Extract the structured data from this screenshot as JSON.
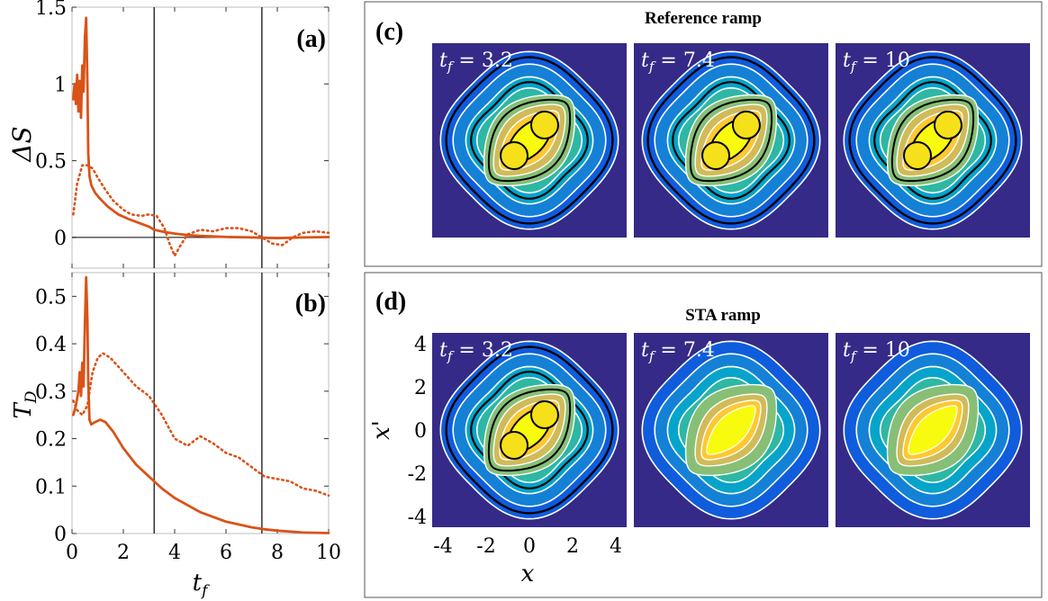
{
  "chart_data": [
    {
      "panel": "(a)",
      "type": "line",
      "xlabel": "",
      "ylabel": "ΔS",
      "xlim": [
        0,
        10
      ],
      "ylim": [
        -0.2,
        1.5
      ],
      "xticks": [
        0,
        2,
        4,
        6,
        8,
        10
      ],
      "yticks": [
        0,
        0.5,
        1,
        1.5
      ],
      "ytick_labels": [
        "0",
        "0.5",
        "1",
        "1.5"
      ],
      "zero_line": true,
      "vlines": [
        3.2,
        7.4
      ],
      "series": [
        {
          "style": "solid",
          "color": "#D95319",
          "x": [
            0.05,
            0.1,
            0.15,
            0.2,
            0.25,
            0.3,
            0.35,
            0.4,
            0.45,
            0.5,
            0.55,
            0.6,
            0.63,
            0.68,
            0.75,
            0.9,
            1.1,
            1.4,
            1.8,
            2.2,
            2.6,
            3.0,
            3.2,
            3.6,
            4.0,
            4.5,
            5.0,
            6.0,
            7.0,
            8.0,
            9.0,
            10.0
          ],
          "y": [
            0.9,
            1.0,
            0.87,
            1.06,
            0.82,
            1.02,
            0.78,
            1.12,
            0.95,
            1.3,
            1.43,
            1.0,
            0.55,
            0.4,
            0.34,
            0.29,
            0.25,
            0.2,
            0.15,
            0.12,
            0.095,
            0.07,
            0.05,
            0.035,
            0.025,
            0.015,
            0.01,
            0.003,
            0.0,
            -0.005,
            0.0,
            0.002
          ]
        },
        {
          "style": "dotted",
          "color": "#D95319",
          "x": [
            0.05,
            0.2,
            0.4,
            0.6,
            0.8,
            1.0,
            1.3,
            1.6,
            2.0,
            2.3,
            2.7,
            3.0,
            3.3,
            3.6,
            3.8,
            4.0,
            4.2,
            4.5,
            5.0,
            5.5,
            6.0,
            6.5,
            7.0,
            7.4,
            7.8,
            8.2,
            8.6,
            9.0,
            9.5,
            10.0
          ],
          "y": [
            0.15,
            0.35,
            0.47,
            0.47,
            0.45,
            0.39,
            0.31,
            0.24,
            0.18,
            0.15,
            0.14,
            0.15,
            0.14,
            0.06,
            -0.04,
            -0.12,
            -0.06,
            0.02,
            0.05,
            0.04,
            0.06,
            0.06,
            0.04,
            0.0,
            -0.04,
            -0.05,
            0.0,
            0.03,
            0.04,
            0.03
          ]
        }
      ]
    },
    {
      "panel": "(b)",
      "type": "line",
      "xlabel": "t_f",
      "ylabel": "T_D",
      "xlim": [
        0,
        10
      ],
      "ylim": [
        0,
        0.55
      ],
      "xticks": [
        0,
        2,
        4,
        6,
        8,
        10
      ],
      "xtick_labels": [
        "0",
        "2",
        "4",
        "6",
        "8",
        "10"
      ],
      "yticks": [
        0,
        0.1,
        0.2,
        0.3,
        0.4,
        0.5
      ],
      "ytick_labels": [
        "0",
        "0.1",
        "0.2",
        "0.3",
        "0.4",
        "0.5"
      ],
      "vlines": [
        3.2,
        7.4
      ],
      "series": [
        {
          "style": "solid",
          "color": "#D95319",
          "x": [
            0.05,
            0.15,
            0.25,
            0.3,
            0.35,
            0.4,
            0.45,
            0.5,
            0.55,
            0.6,
            0.63,
            0.68,
            0.75,
            0.9,
            1.1,
            1.3,
            1.6,
            2.0,
            2.5,
            3.0,
            3.5,
            4.0,
            5.0,
            6.0,
            7.0,
            7.5,
            8.0,
            9.0,
            10.0
          ],
          "y": [
            0.25,
            0.27,
            0.3,
            0.34,
            0.29,
            0.36,
            0.31,
            0.44,
            0.54,
            0.45,
            0.32,
            0.24,
            0.23,
            0.235,
            0.24,
            0.235,
            0.215,
            0.18,
            0.145,
            0.12,
            0.095,
            0.075,
            0.045,
            0.025,
            0.013,
            0.009,
            0.006,
            0.002,
            0.001
          ]
        },
        {
          "style": "dotted",
          "color": "#D95319",
          "x": [
            0.05,
            0.2,
            0.4,
            0.6,
            0.8,
            1.0,
            1.2,
            1.5,
            2.0,
            2.5,
            3.0,
            3.5,
            4.0,
            4.5,
            5.0,
            5.5,
            6.0,
            6.5,
            7.0,
            7.5,
            8.0,
            8.5,
            9.0,
            9.5,
            10.0
          ],
          "y": [
            0.28,
            0.26,
            0.25,
            0.27,
            0.34,
            0.37,
            0.38,
            0.37,
            0.34,
            0.31,
            0.29,
            0.25,
            0.2,
            0.185,
            0.205,
            0.19,
            0.17,
            0.16,
            0.14,
            0.12,
            0.115,
            0.11,
            0.095,
            0.09,
            0.08
          ]
        }
      ]
    },
    {
      "panel": "(c)",
      "type": "heatmap",
      "title": "Reference ramp",
      "frames": [
        {
          "label": "t_f = 3.2",
          "variant": "ref"
        },
        {
          "label": "t_f = 7.4",
          "variant": "ref"
        },
        {
          "label": "t_f = 10",
          "variant": "ref"
        }
      ]
    },
    {
      "panel": "(d)",
      "type": "heatmap",
      "title": "STA ramp",
      "xlabel": "x",
      "ylabel": "x'",
      "xlim": [
        -4.5,
        4.5
      ],
      "ylim": [
        -4.5,
        4.5
      ],
      "xticks": [
        -4,
        -2,
        0,
        2,
        4
      ],
      "xtick_labels": [
        "-4",
        "-2",
        "0",
        "2",
        "4"
      ],
      "yticks": [
        -4,
        -2,
        0,
        2,
        4
      ],
      "ytick_labels": [
        "-4",
        "-2",
        "0",
        "2",
        "4"
      ],
      "frames": [
        {
          "label": "t_f = 3.2",
          "variant": "ref"
        },
        {
          "label": "t_f = 7.4",
          "variant": "sta"
        },
        {
          "label": "t_f = 10",
          "variant": "sta"
        }
      ]
    }
  ],
  "colors": {
    "line": "#D95319",
    "bg": "#352A87",
    "levels": [
      "#352A87",
      "#0F5CDD",
      "#1481D6",
      "#06A4CA",
      "#2EB7A4",
      "#87BF77",
      "#D1BB59",
      "#FEC832",
      "#F9FB0E"
    ]
  }
}
